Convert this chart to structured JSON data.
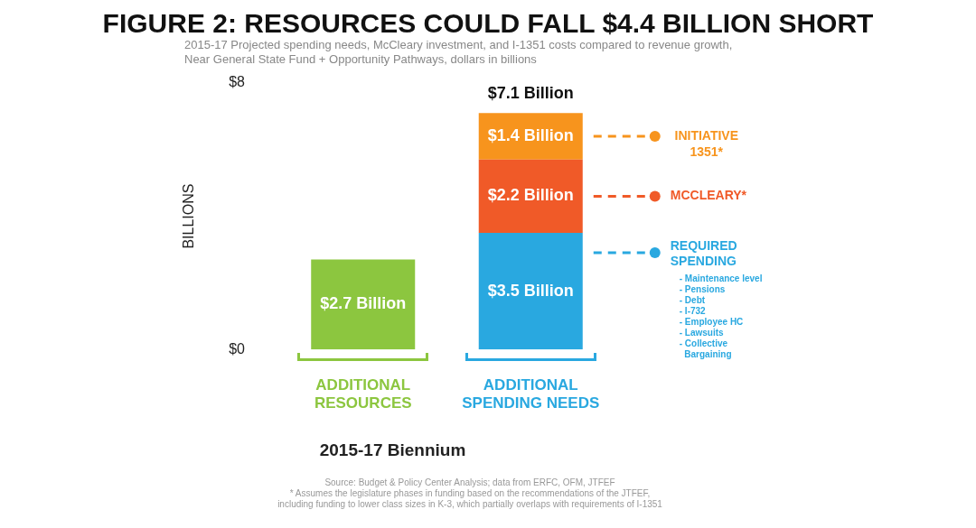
{
  "chart_data": {
    "type": "bar",
    "stacked": true,
    "title": "FIGURE 2: RESOURCES COULD FALL $4.4 BILLION SHORT",
    "subtitle": "2015-17 Projected spending needs, McCleary investment, and I-1351 costs compared to revenue growth,\nNear General State Fund + Opportunity Pathways, dollars in billions",
    "xlabel": "2015-17 Biennium",
    "ylabel": "BILLIONS",
    "categories": [
      "ADDITIONAL RESOURCES",
      "ADDITIONAL SPENDING NEEDS"
    ],
    "series": [
      {
        "color": "#8cc63f",
        "values": [
          2.7,
          null
        ],
        "value_labels": [
          "$2.7 Billion",
          null
        ]
      },
      {
        "name": "REQUIRED SPENDING",
        "color": "#29a8e0",
        "values": [
          null,
          3.5
        ],
        "value_labels": [
          null,
          "$3.5 Billion"
        ]
      },
      {
        "name": "MCCLEARY*",
        "color": "#f05a28",
        "values": [
          null,
          2.2
        ],
        "value_labels": [
          null,
          "$2.2 Billion"
        ]
      },
      {
        "name": "INITIATIVE 1351*",
        "color": "#f7941d",
        "values": [
          null,
          1.4
        ],
        "value_labels": [
          null,
          "$1.4 Billion"
        ]
      }
    ],
    "totals": [
      null,
      "$7.1 Billion"
    ],
    "ylim": [
      0,
      8
    ],
    "yticks": [
      {
        "value": 0,
        "label": "$0"
      },
      {
        "value": 8,
        "label": "$8"
      }
    ],
    "grid": false,
    "legend": "right",
    "annotations": [
      "- Maintenance level\n- Pensions\n- Debt\n- I-732\n- Employee HC\n- Lawsuits\n- Collective\n  Bargaining",
      "Source: Budget & Policy Center Analysis; data from ERFC, OFM, JTFEF",
      "* Assumes the legislature phases in funding based on the recommendations of the JTFEF,\nincluding funding to lower class sizes in K-3, which partially overlaps with requirements of I-1351"
    ]
  }
}
